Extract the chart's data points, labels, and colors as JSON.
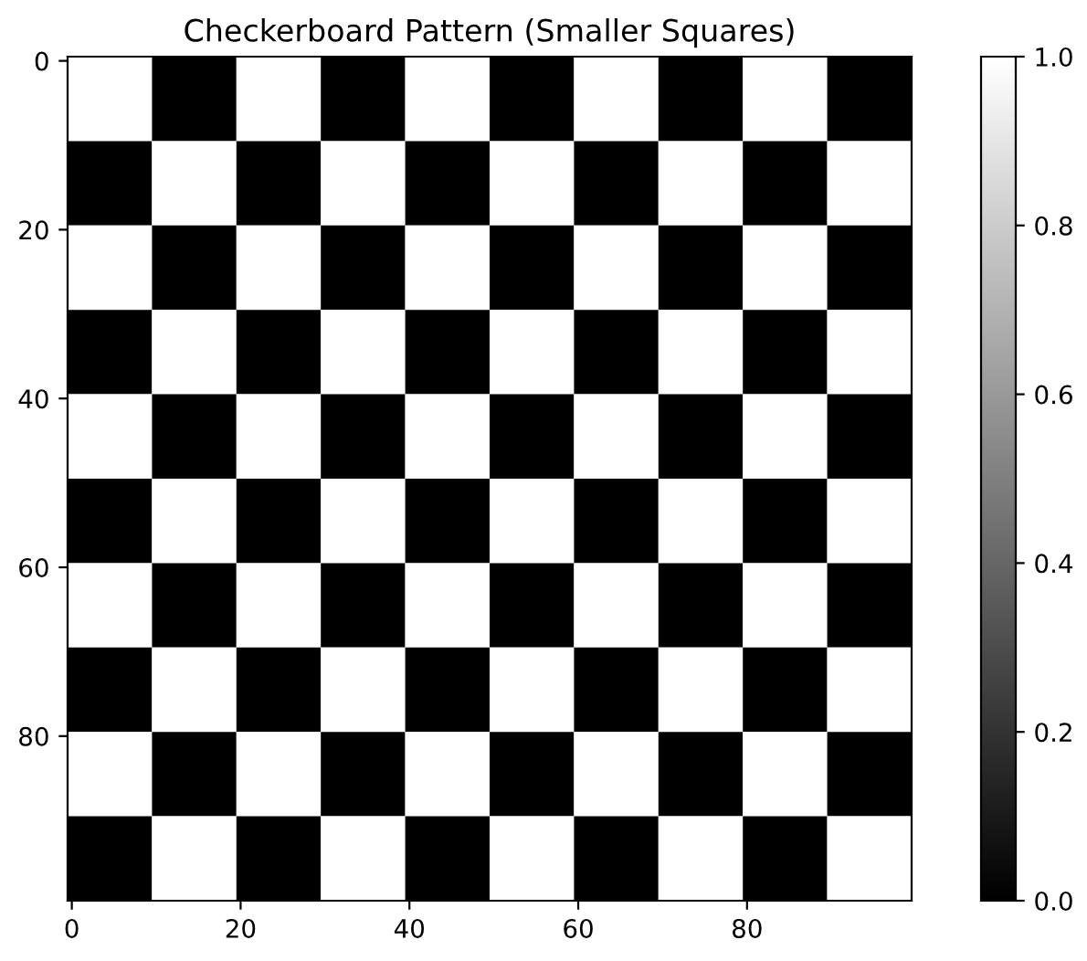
{
  "chart_data": {
    "type": "heatmap",
    "title": "Checkerboard Pattern (Smaller Squares)",
    "cells": [
      [
        1,
        0,
        1,
        0,
        1,
        0,
        1,
        0,
        1,
        0
      ],
      [
        0,
        1,
        0,
        1,
        0,
        1,
        0,
        1,
        0,
        1
      ],
      [
        1,
        0,
        1,
        0,
        1,
        0,
        1,
        0,
        1,
        0
      ],
      [
        0,
        1,
        0,
        1,
        0,
        1,
        0,
        1,
        0,
        1
      ],
      [
        1,
        0,
        1,
        0,
        1,
        0,
        1,
        0,
        1,
        0
      ],
      [
        0,
        1,
        0,
        1,
        0,
        1,
        0,
        1,
        0,
        1
      ],
      [
        1,
        0,
        1,
        0,
        1,
        0,
        1,
        0,
        1,
        0
      ],
      [
        0,
        1,
        0,
        1,
        0,
        1,
        0,
        1,
        0,
        1
      ],
      [
        1,
        0,
        1,
        0,
        1,
        0,
        1,
        0,
        1,
        0
      ],
      [
        0,
        1,
        0,
        1,
        0,
        1,
        0,
        1,
        0,
        1
      ]
    ],
    "colors": [
      "#000000",
      "#ffffff"
    ],
    "xlim": [
      -0.5,
      99.5
    ],
    "ylim": [
      99.5,
      -0.5
    ],
    "xticks": [
      0,
      20,
      40,
      60,
      80
    ],
    "yticks": [
      0,
      20,
      40,
      60,
      80
    ],
    "clim": [
      0,
      1
    ],
    "cticks": [
      {
        "value": 0,
        "label": "0.0"
      },
      {
        "value": 0.2,
        "label": "0.2"
      },
      {
        "value": 0.4,
        "label": "0.4"
      },
      {
        "value": 0.6,
        "label": "0.6"
      },
      {
        "value": 0.8,
        "label": "0.8"
      },
      {
        "value": 1,
        "label": "1.0"
      }
    ]
  }
}
